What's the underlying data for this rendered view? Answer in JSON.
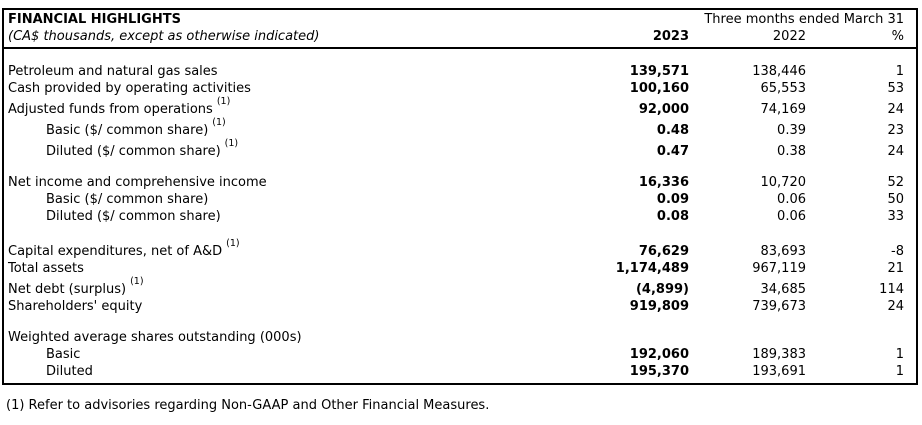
{
  "table": {
    "title": "FINANCIAL HIGHLIGHTS",
    "subtitle": "(CA$ thousands, except as otherwise indicated)",
    "period_header": "Three months ended March 31",
    "columns": [
      "2023",
      "2022",
      "%"
    ],
    "rows": [
      {
        "type": "spacer",
        "first": true
      },
      {
        "type": "data",
        "label": "Petroleum and natural gas sales",
        "sup": "",
        "indent": false,
        "v2023": "139,571",
        "v2022": "138,446",
        "pct": "1"
      },
      {
        "type": "data",
        "label": "Cash provided by operating activities",
        "sup": "",
        "indent": false,
        "v2023": "100,160",
        "v2022": "65,553",
        "pct": "53"
      },
      {
        "type": "data",
        "label": "Adjusted funds from operations",
        "sup": "(1)",
        "indent": false,
        "v2023": "92,000",
        "v2022": "74,169",
        "pct": "24"
      },
      {
        "type": "data",
        "label": "Basic ($/ common share)",
        "sup": "(1)",
        "indent": true,
        "v2023": "0.48",
        "v2022": "0.39",
        "pct": "23"
      },
      {
        "type": "data",
        "label": "Diluted ($/ common share)",
        "sup": "(1)",
        "indent": true,
        "v2023": "0.47",
        "v2022": "0.38",
        "pct": "24"
      },
      {
        "type": "spacer"
      },
      {
        "type": "data",
        "label": "Net income and comprehensive income",
        "sup": "",
        "indent": false,
        "v2023": "16,336",
        "v2022": "10,720",
        "pct": "52"
      },
      {
        "type": "data",
        "label": "Basic ($/ common share)",
        "sup": "",
        "indent": true,
        "v2023": "0.09",
        "v2022": "0.06",
        "pct": "50"
      },
      {
        "type": "data",
        "label": "Diluted ($/ common share)",
        "sup": "",
        "indent": true,
        "v2023": "0.08",
        "v2022": "0.06",
        "pct": "33"
      },
      {
        "type": "spacer"
      },
      {
        "type": "data",
        "label": "Capital expenditures, net of A&D",
        "sup": "(1)",
        "indent": false,
        "v2023": "76,629",
        "v2022": "83,693",
        "pct": "-8"
      },
      {
        "type": "data",
        "label": "Total assets",
        "sup": "",
        "indent": false,
        "v2023": "1,174,489",
        "v2022": "967,119",
        "pct": "21"
      },
      {
        "type": "data",
        "label": "Net debt (surplus)",
        "sup": "(1)",
        "indent": false,
        "v2023": "(4,899)",
        "v2022": "34,685",
        "pct": "114"
      },
      {
        "type": "data",
        "label": "Shareholders' equity",
        "sup": "",
        "indent": false,
        "v2023": "919,809",
        "v2022": "739,673",
        "pct": "24"
      },
      {
        "type": "spacer"
      },
      {
        "type": "data",
        "label": "Weighted average shares outstanding (000s)",
        "sup": "",
        "indent": false,
        "v2023": "",
        "v2022": "",
        "pct": ""
      },
      {
        "type": "data",
        "label": "Basic",
        "sup": "",
        "indent": true,
        "v2023": "192,060",
        "v2022": "189,383",
        "pct": "1"
      },
      {
        "type": "data",
        "label": "Diluted",
        "sup": "",
        "indent": true,
        "v2023": "195,370",
        "v2022": "193,691",
        "pct": "1"
      }
    ]
  },
  "footnote": "(1) Refer to advisories regarding Non-GAAP and Other Financial Measures."
}
